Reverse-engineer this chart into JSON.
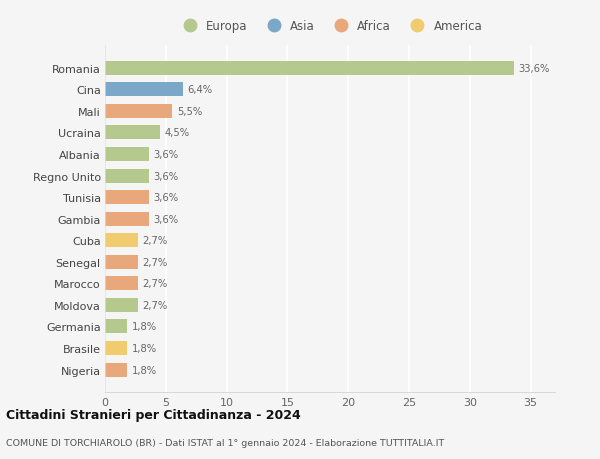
{
  "countries": [
    "Romania",
    "Cina",
    "Mali",
    "Ucraina",
    "Albania",
    "Regno Unito",
    "Tunisia",
    "Gambia",
    "Cuba",
    "Senegal",
    "Marocco",
    "Moldova",
    "Germania",
    "Brasile",
    "Nigeria"
  ],
  "values": [
    33.6,
    6.4,
    5.5,
    4.5,
    3.6,
    3.6,
    3.6,
    3.6,
    2.7,
    2.7,
    2.7,
    2.7,
    1.8,
    1.8,
    1.8
  ],
  "labels": [
    "33,6%",
    "6,4%",
    "5,5%",
    "4,5%",
    "3,6%",
    "3,6%",
    "3,6%",
    "3,6%",
    "2,7%",
    "2,7%",
    "2,7%",
    "2,7%",
    "1,8%",
    "1,8%",
    "1,8%"
  ],
  "continents": [
    "Europa",
    "Asia",
    "Africa",
    "Europa",
    "Europa",
    "Europa",
    "Africa",
    "Africa",
    "America",
    "Africa",
    "Africa",
    "Europa",
    "Europa",
    "America",
    "Africa"
  ],
  "colors": {
    "Europa": "#b5c98e",
    "Asia": "#7ba7c9",
    "Africa": "#e8a87c",
    "America": "#f0cc6e"
  },
  "legend_order": [
    "Europa",
    "Asia",
    "Africa",
    "America"
  ],
  "title": "Cittadini Stranieri per Cittadinanza - 2024",
  "subtitle": "COMUNE DI TORCHIAROLO (BR) - Dati ISTAT al 1° gennaio 2024 - Elaborazione TUTTITALIA.IT",
  "xlim": [
    0,
    37
  ],
  "xticks": [
    0,
    5,
    10,
    15,
    20,
    25,
    30,
    35
  ],
  "background_color": "#f5f5f5",
  "grid_color": "#ffffff"
}
